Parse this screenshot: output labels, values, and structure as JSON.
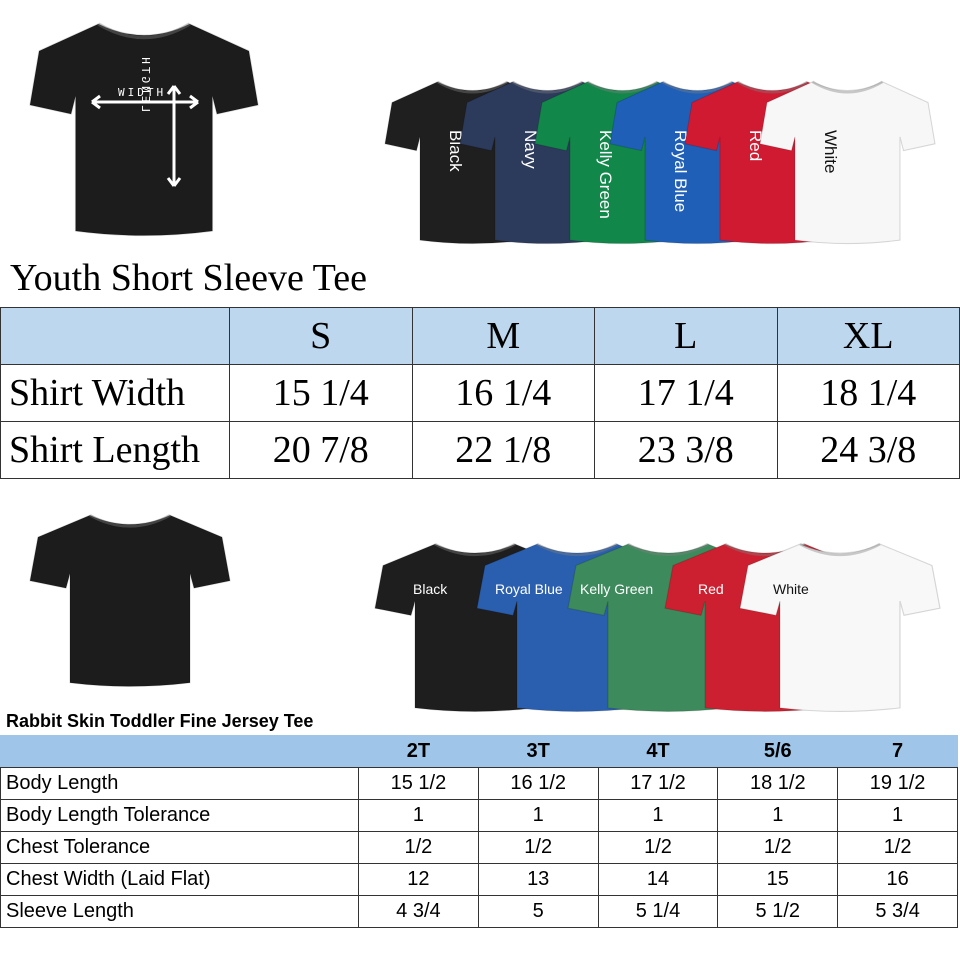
{
  "youth": {
    "measure_shirt": {
      "color": "#1c1c1c",
      "width_label": "WIDTH",
      "length_label": "LENGTH"
    },
    "colors": [
      {
        "name": "Black",
        "hex": "#1f1f1f"
      },
      {
        "name": "Navy",
        "hex": "#2c3a5c"
      },
      {
        "name": "Kelly Green",
        "hex": "#12874a"
      },
      {
        "name": "Royal Blue",
        "hex": "#1f5fb8"
      },
      {
        "name": "Red",
        "hex": "#cf1a32"
      },
      {
        "name": "White",
        "hex": "#f7f7f7"
      }
    ],
    "title": "Youth Short Sleeve Tee",
    "header_bg": "#bdd7ee",
    "columns": [
      "S",
      "M",
      "L",
      "XL"
    ],
    "rows": [
      {
        "label": "Shirt Width",
        "values": [
          "15 1/4",
          "16 1/4",
          "17 1/4",
          "18 1/4"
        ]
      },
      {
        "label": "Shirt Length",
        "values": [
          "20 7/8",
          "22 1/8",
          "23 3/8",
          "24 3/8"
        ]
      }
    ]
  },
  "toddler": {
    "plain_shirt": {
      "color": "#1c1c1c"
    },
    "colors": [
      {
        "name": "Black",
        "hex": "#1e1e1e"
      },
      {
        "name": "Royal Blue",
        "hex": "#2a5fb0"
      },
      {
        "name": "Kelly Green",
        "hex": "#3d8a5c"
      },
      {
        "name": "Red",
        "hex": "#cc2030"
      },
      {
        "name": "White",
        "hex": "#f8f8f8"
      }
    ],
    "title": "Rabbit Skin Toddler Fine Jersey Tee",
    "header_bg": "#9fc5e8",
    "columns": [
      "2T",
      "3T",
      "4T",
      "5/6",
      "7"
    ],
    "rows": [
      {
        "label": "Body Length",
        "values": [
          "15 1/2",
          "16 1/2",
          "17 1/2",
          "18 1/2",
          "19 1/2"
        ]
      },
      {
        "label": "Body Length Tolerance",
        "values": [
          "1",
          "1",
          "1",
          "1",
          "1"
        ]
      },
      {
        "label": "Chest Tolerance",
        "values": [
          "1/2",
          "1/2",
          "1/2",
          "1/2",
          "1/2"
        ]
      },
      {
        "label": "Chest Width (Laid Flat)",
        "values": [
          "12",
          "13",
          "14",
          "15",
          "16"
        ]
      },
      {
        "label": "Sleeve Length",
        "values": [
          "4 3/4",
          "5",
          "5 1/4",
          "5 1/2",
          "5 3/4"
        ]
      }
    ]
  }
}
